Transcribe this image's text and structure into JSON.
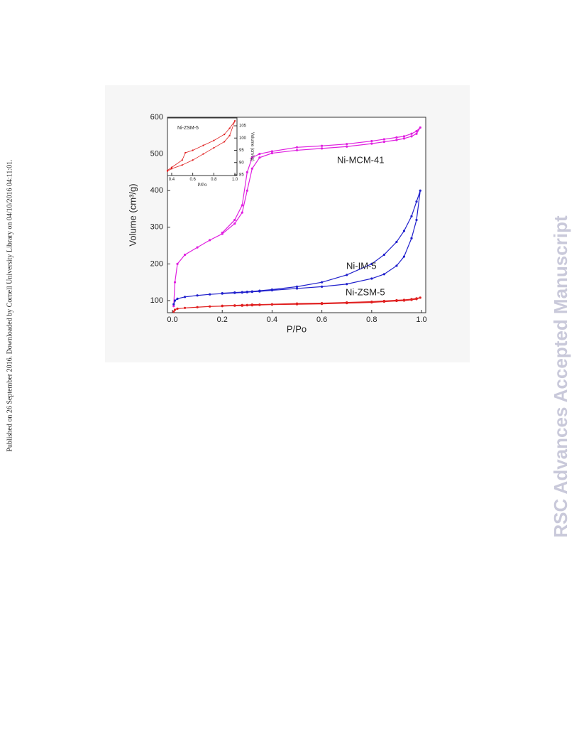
{
  "side_note": "Published on 26 September 2016. Downloaded by Cornell University Library on 04/10/2016 04:11:01.",
  "watermark": "RSC Advances Accepted Manuscript",
  "chart_data": [
    {
      "type": "line",
      "xlabel": "P/Po",
      "ylabel": "Volume (cm³/g)",
      "x": [
        0.005,
        0.01,
        0.02,
        0.05,
        0.1,
        0.15,
        0.2,
        0.25,
        0.28,
        0.3,
        0.32,
        0.35,
        0.4,
        0.5,
        0.6,
        0.7,
        0.8,
        0.85,
        0.9,
        0.93,
        0.96,
        0.98,
        0.995,
        0.98,
        0.96,
        0.93,
        0.9,
        0.85,
        0.8,
        0.7,
        0.6,
        0.5,
        0.4,
        0.35,
        0.32,
        0.3,
        0.28,
        0.25,
        0.2
      ],
      "series": [
        {
          "name": "Ni-MCM-41",
          "color": "#e020e0",
          "values": [
            85,
            150,
            200,
            225,
            245,
            265,
            282,
            310,
            340,
            400,
            460,
            490,
            502,
            510,
            515,
            520,
            528,
            533,
            538,
            542,
            548,
            555,
            572,
            562,
            555,
            548,
            545,
            540,
            535,
            527,
            522,
            518,
            507,
            500,
            490,
            450,
            360,
            320,
            285
          ]
        },
        {
          "name": "Ni-IM-5",
          "color": "#2020cc",
          "values": [
            90,
            100,
            105,
            110,
            114,
            117,
            119,
            121,
            122,
            123,
            124,
            125,
            128,
            133,
            138,
            145,
            160,
            172,
            195,
            220,
            270,
            320,
            400,
            370,
            330,
            290,
            260,
            225,
            200,
            170,
            150,
            138,
            130,
            127,
            125,
            124,
            123,
            122,
            120
          ]
        },
        {
          "name": "Ni-ZSM-5",
          "color": "#e02020",
          "values": [
            70,
            75,
            78,
            80,
            82,
            84,
            85,
            86,
            86,
            87,
            87,
            88,
            89,
            90,
            91,
            93,
            95,
            97,
            99,
            100,
            102,
            104,
            108,
            106,
            104,
            102,
            101,
            99,
            97,
            95,
            93,
            92,
            90,
            89,
            89,
            88,
            88,
            87,
            86
          ]
        }
      ],
      "xlim": [
        -0.02,
        1.017
      ],
      "ylim": [
        67,
        600
      ],
      "xticks": [
        {
          "value": 0,
          "label": "0.0"
        },
        {
          "value": 0.2,
          "label": "0.2"
        },
        {
          "value": 0.4,
          "label": "0.4"
        },
        {
          "value": 0.6,
          "label": "0.6"
        },
        {
          "value": 0.8,
          "label": "0.8"
        },
        {
          "value": 1,
          "label": "1.0"
        }
      ],
      "yticks": [
        100,
        200,
        300,
        400,
        500,
        600
      ],
      "yaxis_side": "left"
    },
    {
      "type": "line",
      "title": "Ni-ZSM-5",
      "xlabel": "P/Po",
      "ylabel": "Volume (cm³/g)",
      "x": [
        0.36,
        0.4,
        0.5,
        0.6,
        0.7,
        0.8,
        0.9,
        0.95,
        1.0,
        0.95,
        0.9,
        0.8,
        0.7,
        0.6,
        0.53,
        0.5,
        0.4,
        0.36
      ],
      "series": [
        {
          "name": "Ni-ZSM-5",
          "color": "#e02020",
          "values": [
            86.5,
            87.5,
            89,
            91,
            93.5,
            96,
            98.5,
            101,
            107,
            104,
            101.5,
            99,
            97,
            95,
            94,
            91,
            88,
            86.8
          ]
        }
      ],
      "xlim": [
        0.36,
        1.02
      ],
      "ylim": [
        84.7,
        108.2
      ],
      "xticks": [
        {
          "value": 0.4,
          "label": "0.4"
        },
        {
          "value": 0.6,
          "label": "0.6"
        },
        {
          "value": 0.8,
          "label": "0.8"
        },
        {
          "value": 1,
          "label": "1.0"
        }
      ],
      "yticks": [
        85,
        90,
        95,
        100,
        105
      ],
      "yaxis_side": "right"
    }
  ]
}
